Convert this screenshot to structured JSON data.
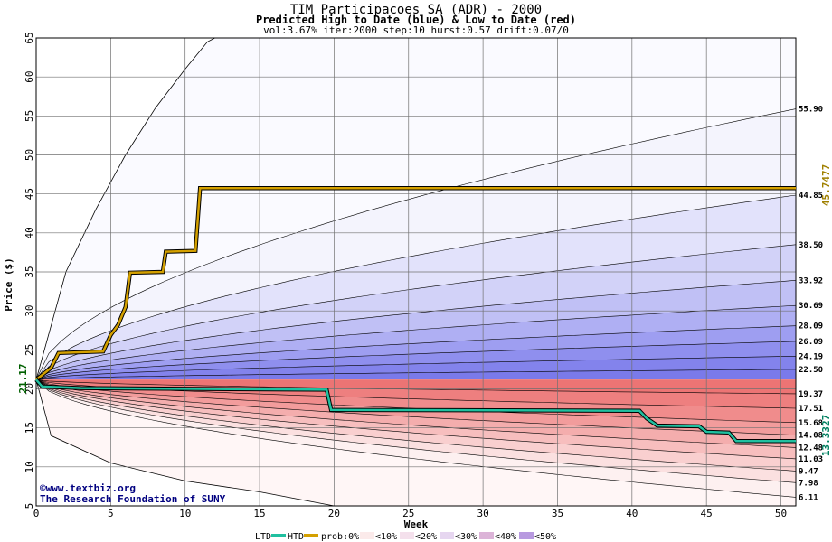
{
  "chart_data": {
    "type": "area",
    "title": "TIM Participacoes SA (ADR) - 2000",
    "subtitle": "Predicted High to Date (blue) &  Low to Date (red)",
    "params": "vol:3.67% iter:2000 step:10 hurst:0.57 drift:0.07/0",
    "xlabel": "Week",
    "ylabel": "Price ($)",
    "xlim": [
      0,
      51
    ],
    "ylim": [
      5,
      65
    ],
    "x_ticks": [
      "0",
      "5",
      "10",
      "15",
      "20",
      "25",
      "30",
      "35",
      "40",
      "45",
      "50"
    ],
    "y_ticks": [
      "5",
      "10",
      "15",
      "20",
      "25",
      "30",
      "35",
      "40",
      "45",
      "50",
      "55",
      "60",
      "65"
    ],
    "start_price": 21.17,
    "start_label": "21.17",
    "grid": true,
    "high_band_levels": [
      "55.90",
      "44.85",
      "38.50",
      "33.92",
      "30.69",
      "28.09",
      "26.09",
      "24.19",
      "22.50"
    ],
    "low_band_levels": [
      "19.37",
      "17.51",
      "15.68",
      "14.08",
      "12.48",
      "11.03",
      "9.47",
      "7.98",
      "6.11"
    ],
    "end_high_label": "45.7477",
    "end_low_label": "13.3327",
    "high_series_color": "#d4a000",
    "low_series_color": "#20c0a0",
    "high_series": [
      [
        0,
        21.17
      ],
      [
        1,
        22.7
      ],
      [
        1.5,
        24.6
      ],
      [
        4.5,
        24.8
      ],
      [
        5,
        26.9
      ],
      [
        5.5,
        28.2
      ],
      [
        6,
        30.5
      ],
      [
        6.3,
        34.9
      ],
      [
        8.5,
        35.0
      ],
      [
        8.7,
        37.6
      ],
      [
        10.7,
        37.7
      ],
      [
        11,
        45.75
      ],
      [
        51,
        45.75
      ]
    ],
    "low_series": [
      [
        0,
        21.17
      ],
      [
        0.4,
        20.3
      ],
      [
        3,
        20.1
      ],
      [
        19.5,
        19.9
      ],
      [
        19.8,
        17.3
      ],
      [
        40.5,
        17.2
      ],
      [
        41,
        16.2
      ],
      [
        41.7,
        15.3
      ],
      [
        44.5,
        15.2
      ],
      [
        45,
        14.5
      ],
      [
        46.5,
        14.4
      ],
      [
        47,
        13.3
      ],
      [
        51,
        13.3
      ]
    ],
    "outer_curves": {
      "high_upper": [
        [
          0,
          21.17
        ],
        [
          2,
          35
        ],
        [
          4,
          43
        ],
        [
          6,
          50
        ],
        [
          8,
          56
        ],
        [
          10,
          61
        ],
        [
          11.5,
          64.5
        ],
        [
          12,
          65
        ]
      ],
      "low_lower": [
        [
          0,
          21.17
        ],
        [
          1,
          14
        ],
        [
          5,
          10.5
        ],
        [
          10,
          8.2
        ],
        [
          15,
          6.8
        ],
        [
          20,
          5
        ]
      ]
    },
    "legend": {
      "ltd": "LTD",
      "htd": "HTD",
      "prob": "prob:0%",
      "items": [
        "<10%",
        "<20%",
        "<30%",
        "<40%",
        "<50%"
      ],
      "swatches": [
        "#fbeaea",
        "#f4e0ec",
        "#e6d6f0",
        "#dcb4d8",
        "#b89ae0"
      ]
    },
    "credit": [
      "©www.textbiz.org",
      "The Research Foundation of SUNY"
    ]
  }
}
